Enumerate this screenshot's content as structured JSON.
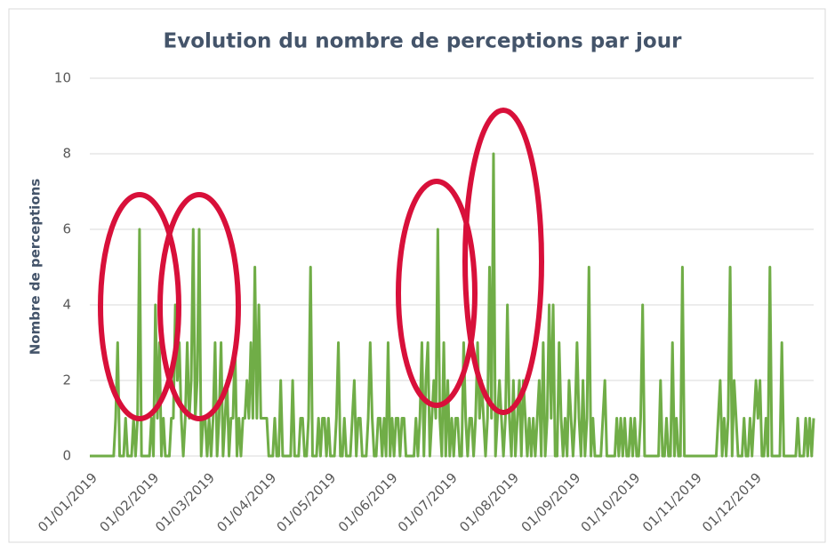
{
  "chart_data": {
    "type": "line",
    "title": "Evolution du nombre de perceptions par jour",
    "y_label": "Nombre de perceptions",
    "color": "#70ad47",
    "grid": true,
    "ylim": [
      0,
      10
    ],
    "yticks": [
      0,
      2,
      4,
      6,
      8,
      10
    ],
    "xlim": [
      "01/01/2019",
      "31/12/2019"
    ],
    "xticks": [
      "01/01/2019",
      "01/02/2019",
      "01/03/2019",
      "01/04/2019",
      "01/05/2019",
      "01/06/2019",
      "01/07/2019",
      "01/08/2019",
      "01/09/2019",
      "01/10/2019",
      "01/11/2019",
      "01/12/2019"
    ],
    "x": [
      "01/01/2019",
      "02/01/2019",
      "03/01/2019",
      "04/01/2019",
      "05/01/2019",
      "06/01/2019",
      "07/01/2019",
      "08/01/2019",
      "09/01/2019",
      "10/01/2019",
      "11/01/2019",
      "12/01/2019",
      "13/01/2019",
      "14/01/2019",
      "15/01/2019",
      "16/01/2019",
      "17/01/2019",
      "18/01/2019",
      "19/01/2019",
      "20/01/2019",
      "21/01/2019",
      "22/01/2019",
      "23/01/2019",
      "24/01/2019",
      "25/01/2019",
      "26/01/2019",
      "27/01/2019",
      "28/01/2019",
      "29/01/2019",
      "30/01/2019",
      "31/01/2019",
      "01/02/2019",
      "02/02/2019",
      "03/02/2019",
      "04/02/2019",
      "05/02/2019",
      "06/02/2019",
      "07/02/2019",
      "08/02/2019",
      "09/02/2019",
      "10/02/2019",
      "11/02/2019",
      "12/02/2019",
      "13/02/2019",
      "14/02/2019",
      "15/02/2019",
      "16/02/2019",
      "17/02/2019",
      "18/02/2019",
      "19/02/2019",
      "20/02/2019",
      "21/02/2019",
      "22/02/2019",
      "23/02/2019",
      "24/02/2019",
      "25/02/2019",
      "26/02/2019",
      "27/02/2019",
      "28/02/2019",
      "01/03/2019",
      "02/03/2019",
      "03/03/2019",
      "04/03/2019",
      "05/03/2019",
      "06/03/2019",
      "07/03/2019",
      "08/03/2019",
      "09/03/2019",
      "10/03/2019",
      "11/03/2019",
      "12/03/2019",
      "13/03/2019",
      "14/03/2019",
      "15/03/2019",
      "16/03/2019",
      "17/03/2019",
      "18/03/2019",
      "19/03/2019",
      "20/03/2019",
      "21/03/2019",
      "22/03/2019",
      "23/03/2019",
      "24/03/2019",
      "25/03/2019",
      "26/03/2019",
      "27/03/2019",
      "28/03/2019",
      "29/03/2019",
      "30/03/2019",
      "31/03/2019",
      "01/04/2019",
      "02/04/2019",
      "03/04/2019",
      "04/04/2019",
      "05/04/2019",
      "06/04/2019",
      "07/04/2019",
      "08/04/2019",
      "09/04/2019",
      "10/04/2019",
      "11/04/2019",
      "12/04/2019",
      "13/04/2019",
      "14/04/2019",
      "15/04/2019",
      "16/04/2019",
      "17/04/2019",
      "18/04/2019",
      "19/04/2019",
      "20/04/2019",
      "21/04/2019",
      "22/04/2019",
      "23/04/2019",
      "24/04/2019",
      "25/04/2019",
      "26/04/2019",
      "27/04/2019",
      "28/04/2019",
      "29/04/2019",
      "30/04/2019",
      "01/05/2019",
      "02/05/2019",
      "03/05/2019",
      "04/05/2019",
      "05/05/2019",
      "06/05/2019",
      "07/05/2019",
      "08/05/2019",
      "09/05/2019",
      "10/05/2019",
      "11/05/2019",
      "12/05/2019",
      "13/05/2019",
      "14/05/2019",
      "15/05/2019",
      "16/05/2019",
      "17/05/2019",
      "18/05/2019",
      "19/05/2019",
      "20/05/2019",
      "21/05/2019",
      "22/05/2019",
      "23/05/2019",
      "24/05/2019",
      "25/05/2019",
      "26/05/2019",
      "27/05/2019",
      "28/05/2019",
      "29/05/2019",
      "30/05/2019",
      "31/05/2019",
      "01/06/2019",
      "02/06/2019",
      "03/06/2019",
      "04/06/2019",
      "05/06/2019",
      "06/06/2019",
      "07/06/2019",
      "08/06/2019",
      "09/06/2019",
      "10/06/2019",
      "11/06/2019",
      "12/06/2019",
      "13/06/2019",
      "14/06/2019",
      "15/06/2019",
      "16/06/2019",
      "17/06/2019",
      "18/06/2019",
      "19/06/2019",
      "20/06/2019",
      "21/06/2019",
      "22/06/2019",
      "23/06/2019",
      "24/06/2019",
      "25/06/2019",
      "26/06/2019",
      "27/06/2019",
      "28/06/2019",
      "29/06/2019",
      "30/06/2019",
      "01/07/2019",
      "02/07/2019",
      "03/07/2019",
      "04/07/2019",
      "05/07/2019",
      "06/07/2019",
      "07/07/2019",
      "08/07/2019",
      "09/07/2019",
      "10/07/2019",
      "11/07/2019",
      "12/07/2019",
      "13/07/2019",
      "14/07/2019",
      "15/07/2019",
      "16/07/2019",
      "17/07/2019",
      "18/07/2019",
      "19/07/2019",
      "20/07/2019",
      "21/07/2019",
      "22/07/2019",
      "23/07/2019",
      "24/07/2019",
      "25/07/2019",
      "26/07/2019",
      "27/07/2019",
      "28/07/2019",
      "29/07/2019",
      "30/07/2019",
      "31/07/2019",
      "01/08/2019",
      "02/08/2019",
      "03/08/2019",
      "04/08/2019",
      "05/08/2019",
      "06/08/2019",
      "07/08/2019",
      "08/08/2019",
      "09/08/2019",
      "10/08/2019",
      "11/08/2019",
      "12/08/2019",
      "13/08/2019",
      "14/08/2019",
      "15/08/2019",
      "16/08/2019",
      "17/08/2019",
      "18/08/2019",
      "19/08/2019",
      "20/08/2019",
      "21/08/2019",
      "22/08/2019",
      "23/08/2019",
      "24/08/2019",
      "25/08/2019",
      "26/08/2019",
      "27/08/2019",
      "28/08/2019",
      "29/08/2019",
      "30/08/2019",
      "31/08/2019",
      "01/09/2019",
      "02/09/2019",
      "03/09/2019",
      "04/09/2019",
      "05/09/2019",
      "06/09/2019",
      "07/09/2019",
      "08/09/2019",
      "09/09/2019",
      "10/09/2019",
      "11/09/2019",
      "12/09/2019",
      "13/09/2019",
      "14/09/2019",
      "15/09/2019",
      "16/09/2019",
      "17/09/2019",
      "18/09/2019",
      "19/09/2019",
      "20/09/2019",
      "21/09/2019",
      "22/09/2019",
      "23/09/2019",
      "24/09/2019",
      "25/09/2019",
      "26/09/2019",
      "27/09/2019",
      "28/09/2019",
      "29/09/2019",
      "30/09/2019",
      "01/10/2019",
      "02/10/2019",
      "03/10/2019",
      "04/10/2019",
      "05/10/2019",
      "06/10/2019",
      "07/10/2019",
      "08/10/2019",
      "09/10/2019",
      "10/10/2019",
      "11/10/2019",
      "12/10/2019",
      "13/10/2019",
      "14/10/2019",
      "15/10/2019",
      "16/10/2019",
      "17/10/2019",
      "18/10/2019",
      "19/10/2019",
      "20/10/2019",
      "21/10/2019",
      "22/10/2019",
      "23/10/2019",
      "24/10/2019",
      "25/10/2019",
      "26/10/2019",
      "27/10/2019",
      "28/10/2019",
      "29/10/2019",
      "30/10/2019",
      "31/10/2019",
      "01/11/2019",
      "02/11/2019",
      "03/11/2019",
      "04/11/2019",
      "05/11/2019",
      "06/11/2019",
      "07/11/2019",
      "08/11/2019",
      "09/11/2019",
      "10/11/2019",
      "11/11/2019",
      "12/11/2019",
      "13/11/2019",
      "14/11/2019",
      "15/11/2019",
      "16/11/2019",
      "17/11/2019",
      "18/11/2019",
      "19/11/2019",
      "20/11/2019",
      "21/11/2019",
      "22/11/2019",
      "23/11/2019",
      "24/11/2019",
      "25/11/2019",
      "26/11/2019",
      "27/11/2019",
      "28/11/2019",
      "29/11/2019",
      "30/11/2019",
      "01/12/2019",
      "02/12/2019",
      "03/12/2019",
      "04/12/2019",
      "05/12/2019",
      "06/12/2019",
      "07/12/2019",
      "08/12/2019",
      "09/12/2019",
      "10/12/2019",
      "11/12/2019",
      "12/12/2019",
      "13/12/2019",
      "14/12/2019",
      "15/12/2019",
      "16/12/2019",
      "17/12/2019",
      "18/12/2019",
      "19/12/2019",
      "20/12/2019",
      "21/12/2019",
      "22/12/2019",
      "23/12/2019",
      "24/12/2019",
      "25/12/2019",
      "26/12/2019",
      "27/12/2019",
      "28/12/2019",
      "29/12/2019",
      "30/12/2019",
      "31/12/2019"
    ],
    "values": [
      0,
      0,
      0,
      0,
      0,
      0,
      0,
      0,
      0,
      0,
      0,
      0,
      0,
      1,
      3,
      0,
      0,
      0,
      1,
      0,
      0,
      0,
      1,
      0,
      1,
      6,
      0,
      0,
      0,
      0,
      0,
      1,
      0,
      4,
      1,
      3,
      0,
      1,
      0,
      0,
      0,
      1,
      1,
      4,
      2,
      3,
      1,
      0,
      1,
      3,
      1,
      2,
      6,
      1,
      2,
      6,
      0,
      1,
      1,
      0,
      1,
      0,
      1,
      3,
      0,
      1,
      3,
      0,
      1,
      2,
      0,
      1,
      1,
      3,
      0,
      1,
      0,
      1,
      1,
      2,
      1,
      3,
      1,
      5,
      1,
      4,
      1,
      1,
      1,
      1,
      0,
      0,
      0,
      1,
      0,
      0,
      2,
      0,
      0,
      0,
      0,
      0,
      2,
      0,
      0,
      0,
      1,
      1,
      0,
      0,
      1,
      5,
      0,
      0,
      0,
      1,
      0,
      1,
      1,
      0,
      1,
      0,
      0,
      0,
      1,
      3,
      0,
      0,
      1,
      0,
      0,
      0,
      1,
      2,
      0,
      1,
      1,
      0,
      0,
      0,
      1,
      3,
      1,
      0,
      0,
      1,
      1,
      0,
      1,
      0,
      3,
      0,
      1,
      0,
      1,
      1,
      0,
      1,
      1,
      0,
      0,
      0,
      0,
      0,
      1,
      0,
      1,
      3,
      0,
      2,
      3,
      0,
      1,
      2,
      1,
      6,
      1,
      0,
      3,
      0,
      2,
      0,
      1,
      0,
      1,
      1,
      0,
      0,
      3,
      1,
      0,
      1,
      1,
      0,
      1,
      3,
      1,
      2,
      1,
      0,
      1,
      5,
      1,
      8,
      0,
      1,
      2,
      1,
      0,
      1,
      4,
      1,
      0,
      2,
      0,
      1,
      2,
      0,
      2,
      1,
      0,
      1,
      0,
      1,
      0,
      1,
      2,
      0,
      3,
      0,
      1,
      4,
      1,
      4,
      0,
      0,
      3,
      1,
      0,
      1,
      0,
      2,
      1,
      0,
      1,
      3,
      1,
      0,
      2,
      0,
      1,
      5,
      0,
      1,
      0,
      0,
      0,
      0,
      1,
      2,
      0,
      0,
      0,
      0,
      0,
      1,
      0,
      1,
      0,
      1,
      0,
      0,
      1,
      0,
      1,
      0,
      0,
      1,
      4,
      0,
      0,
      0,
      0,
      0,
      0,
      0,
      0,
      2,
      0,
      0,
      1,
      0,
      0,
      3,
      0,
      1,
      0,
      0,
      5,
      0,
      0,
      0,
      0,
      0,
      0,
      0,
      0,
      0,
      0,
      0,
      0,
      0,
      0,
      0,
      0,
      0,
      1,
      2,
      0,
      1,
      0,
      1,
      5,
      0,
      2,
      1,
      0,
      0,
      0,
      1,
      0,
      0,
      1,
      0,
      1,
      2,
      1,
      2,
      0,
      0,
      1,
      0,
      5,
      0,
      0,
      0,
      0,
      0,
      3,
      0,
      0,
      0,
      0,
      0,
      0,
      0,
      1,
      0,
      0,
      0,
      1,
      0,
      1,
      0,
      1
    ]
  }
}
